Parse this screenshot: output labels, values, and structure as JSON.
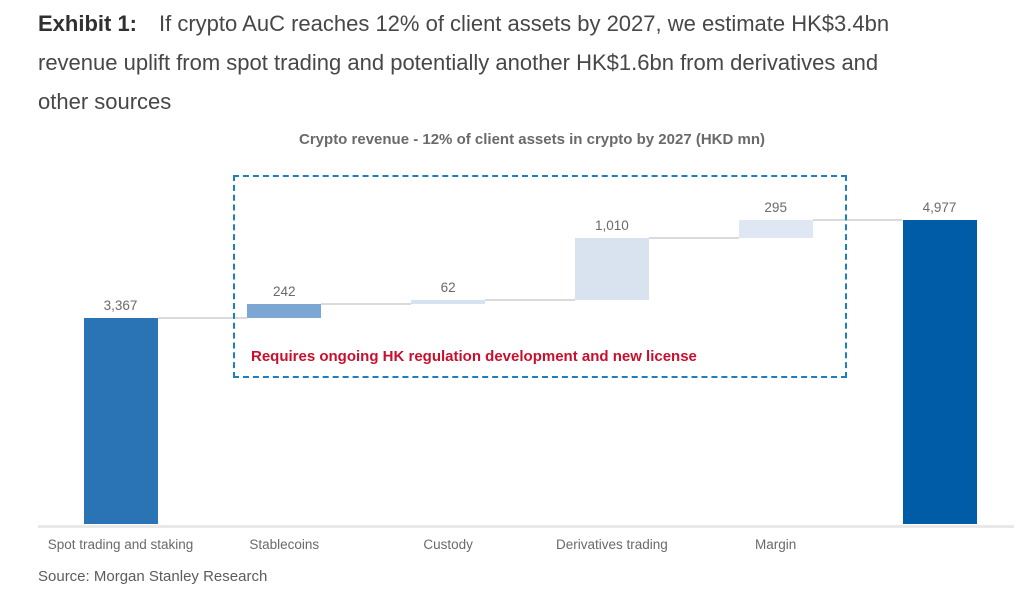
{
  "exhibit": {
    "label": "Exhibit 1:",
    "lines": [
      "If crypto AuC reaches 12% of client assets by 2027, we estimate HK$3.4bn",
      "revenue uplift from spot trading and potentially another HK$1.6bn from derivatives and",
      "other sources"
    ]
  },
  "chart_data": {
    "type": "bar",
    "subtype": "waterfall",
    "title": "Crypto revenue - 12% of client assets in crypto by 2027 (HKD mn)",
    "categories": [
      "Spot trading and staking",
      "Stablecoins",
      "Custody",
      "Derivatives trading",
      "Margin",
      ""
    ],
    "series": [
      {
        "name": "Crypto revenue by 2027 (HKD mn)",
        "values": [
          3367,
          242,
          62,
          1010,
          295,
          4977
        ],
        "labels": [
          "3,367",
          "242",
          "62",
          "1,010",
          "295",
          "4,977"
        ],
        "roles": [
          "total",
          "increase",
          "increase",
          "increase",
          "increase",
          "total"
        ],
        "bar_colors": [
          "#2a73b5",
          "#7da7d3",
          "#d5e2f0",
          "#d9e3f0",
          "#dee7f3",
          "#005ca7"
        ]
      }
    ],
    "cumulative_tops": [
      3367,
      3609,
      3671,
      4681,
      4976,
      4977
    ],
    "ylim": [
      0,
      5000
    ],
    "grid": false,
    "legend": false,
    "connector_color": "#dadada",
    "axis_line_color": "#e9e9e9",
    "label_color": "#6a6a6a",
    "annotation": {
      "text": "Requires ongoing HK regulation development and new license",
      "color": "#c8102e",
      "box_color": "#1e7fbf",
      "box_covers": [
        "Stablecoins",
        "Custody",
        "Derivatives trading",
        "Margin"
      ]
    }
  },
  "source": "Source: Morgan Stanley Research"
}
